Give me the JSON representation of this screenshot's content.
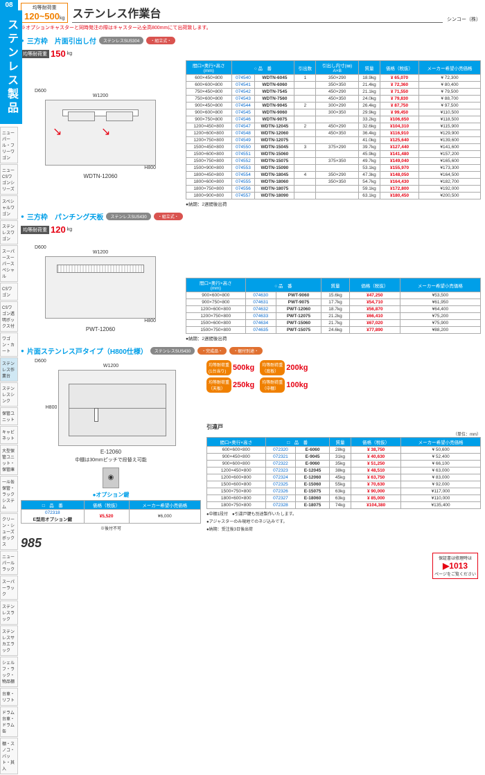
{
  "page": {
    "num": "985",
    "cat_num": "08",
    "cat_name": "ステンレス製品",
    "title": "ステンレス作業台",
    "maker": "シンコー（株）"
  },
  "load_box": {
    "label": "均等耐荷重",
    "value": "120~500",
    "unit": "kg"
  },
  "warn": "※オプションキャスターと同時発注の際はキャスター込全高800mmにて出荷致します。",
  "sidenav": [
    "ニューパール・フリーワゴン",
    "ニューCSワゴンシリーズ",
    "スペシャルワゴン",
    "ステンレスワゴン",
    "スーパースーパースペシャル",
    "CSワゴン",
    "CSワゴン透明ボックス付",
    "ワゴン・カート",
    "ステンレス作業台",
    "ステンレスシンク",
    "保管ユニット",
    "キャビネット",
    "大型保管ユニット・保管庫",
    "一斗缶保管・ラックシステム",
    "クリーン・シューズボックス",
    "ニューパールラック",
    "スーパーラック",
    "ステンレスラック",
    "ステンレスサカエラック",
    "シェルフ・ラック・物品棚",
    "台車・リフト",
    "ドラム台車・ドラム缶",
    "棚・スノコ・バット・其入"
  ],
  "active_nav": 8,
  "sec1": {
    "name": "三方枠　片面引出し付",
    "mat": "ステンレスSUS304",
    "type": "・組立式・",
    "load": "150",
    "caption": "WDTN-12060",
    "dim_top": "W1200",
    "dim_d": "D600",
    "dim_h": "H800",
    "cols": [
      "間口×奥行×高さ\n(mm)",
      "○ 品　番",
      "引出数",
      "引出し内寸(㎜)\nA×B",
      "質量",
      "価格（税抜）",
      "メーカー希望小売価格"
    ],
    "rows": [
      [
        "600×450×800",
        "074540",
        "WDTN-6045",
        "1",
        "350×290",
        "18.9kg",
        "¥ 65,070",
        "¥ 72,300"
      ],
      [
        "600×600×800",
        "074541",
        "WDTN-6060",
        "",
        "350×350",
        "21.4kg",
        "¥ 72,360",
        "¥ 80,400"
      ],
      [
        "750×450×800",
        "074542",
        "WDTN-7545",
        "",
        "450×290",
        "21.1kg",
        "¥ 71,550",
        "¥ 79,500"
      ],
      [
        "750×600×800",
        "074543",
        "WDTN-7560",
        "",
        "450×350",
        "24.0kg",
        "¥ 79,830",
        "¥ 88,700"
      ],
      [
        "900×450×800",
        "074544",
        "WDTN-9045",
        "2",
        "300×290",
        "26.4kg",
        "¥ 87,750",
        "¥ 97,500"
      ],
      [
        "900×600×800",
        "074545",
        "WDTN-9060",
        "",
        "300×350",
        "29.9kg",
        "¥ 99,450",
        "¥110,500"
      ],
      [
        "900×750×800",
        "074546",
        "WDTN-9075",
        "",
        "",
        "33.2kg",
        "¥106,650",
        "¥118,500"
      ],
      [
        "1200×450×800",
        "074547",
        "WDTN-12045",
        "2",
        "450×290",
        "32.6kg",
        "¥104,310",
        "¥115,900"
      ],
      [
        "1200×600×800",
        "074548",
        "WDTN-12060",
        "",
        "450×350",
        "36.4kg",
        "¥116,910",
        "¥129,900"
      ],
      [
        "1200×750×800",
        "074549",
        "WDTN-12075",
        "",
        "",
        "41.0kg",
        "¥125,640",
        "¥139,600"
      ],
      [
        "1500×450×800",
        "074550",
        "WDTN-15045",
        "3",
        "375×290",
        "39.7kg",
        "¥127,440",
        "¥141,600"
      ],
      [
        "1500×600×800",
        "074551",
        "WDTN-15060",
        "",
        "",
        "45.9kg",
        "¥141,480",
        "¥157,200"
      ],
      [
        "1500×750×800",
        "074552",
        "WDTN-15075",
        "",
        "375×350",
        "49.7kg",
        "¥149,040",
        "¥165,600"
      ],
      [
        "1500×900×800",
        "074553",
        "WDTN-15090",
        "",
        "",
        "53.1kg",
        "¥155,970",
        "¥173,300"
      ],
      [
        "1800×450×800",
        "074554",
        "WDTN-18045",
        "4",
        "350×290",
        "47.3kg",
        "¥148,050",
        "¥164,500"
      ],
      [
        "1800×600×800",
        "074555",
        "WDTN-18060",
        "",
        "350×350",
        "54.7kg",
        "¥164,430",
        "¥182,700"
      ],
      [
        "1800×750×800",
        "074556",
        "WDTN-18075",
        "",
        "",
        "59.1kg",
        "¥172,800",
        "¥192,000"
      ],
      [
        "1800×900×800",
        "074557",
        "WDTN-18090",
        "",
        "",
        "63.1kg",
        "¥180,450",
        "¥200,500"
      ]
    ],
    "nouki": "●納期：2週間後出荷"
  },
  "sec2": {
    "name": "三方枠　パンチング天板",
    "mat": "ステンレスSUS430",
    "type": "・組立式・",
    "load": "120",
    "caption": "PWT-12060",
    "dim_top": "W1200",
    "dim_d": "D600",
    "dim_h": "H800",
    "cols": [
      "間口×奥行×高さ\n(mm)",
      "○ 品　番",
      "質量",
      "価格（税抜）",
      "メーカー希望小売価格"
    ],
    "rows": [
      [
        "900×600×800",
        "074630",
        "PWT-9060",
        "15.6kg",
        "¥47,250",
        "¥53,500"
      ],
      [
        "900×750×800",
        "074631",
        "PWT-9075",
        "17.7kg",
        "¥54,710",
        "¥61,950"
      ],
      [
        "1200×600×800",
        "074632",
        "PWT-12060",
        "18.7kg",
        "¥56,870",
        "¥64,400"
      ],
      [
        "1200×750×800",
        "074633",
        "PWT-12075",
        "21.2kg",
        "¥66,410",
        "¥75,200"
      ],
      [
        "1500×600×800",
        "074634",
        "PWT-15060",
        "21.7kg",
        "¥67,020",
        "¥75,900"
      ],
      [
        "1500×750×800",
        "074635",
        "PWT-15075",
        "24.6kg",
        "¥77,890",
        "¥88,200"
      ]
    ],
    "nouki": "●納期：2週間後出荷"
  },
  "sec3": {
    "name": "片面ステンレス戸タイプ（H800仕様）",
    "mat": "ステンレスSUS430",
    "type": "・完成品・",
    "sep": "・据付別途・",
    "caption": "E-12060",
    "dim_top": "W1200",
    "dim_d": "D600",
    "dim_h": "H800",
    "sub": "中棚は30mmピッチで段替え可能",
    "loads": [
      [
        "均等耐荷重\n(1台当り)",
        "500kg"
      ],
      [
        "均等耐荷重\n（底板）",
        "200kg"
      ],
      [
        "均等耐荷重\n（天板）",
        "250kg"
      ],
      [
        "均等耐荷重\n（中棚）",
        "100kg"
      ]
    ],
    "subtitle": "引違戸",
    "unit": "（単位：mm）",
    "cols": [
      "間口×奥行×高さ",
      "□　品　番",
      "質量",
      "価格（税抜）",
      "メーカー希望小売価格"
    ],
    "rows": [
      [
        "600×600×800",
        "072320",
        "E-6060",
        "28kg",
        "¥ 38,750",
        "¥ 50,600"
      ],
      [
        "900×450×800",
        "072321",
        "E-9045",
        "31kg",
        "¥ 40,630",
        "¥ 52,400"
      ],
      [
        "900×600×800",
        "072322",
        "E-9060",
        "35kg",
        "¥ 51,250",
        "¥ 66,100"
      ],
      [
        "1200×450×800",
        "072323",
        "E-12045",
        "38kg",
        "¥ 48,510",
        "¥ 63,000"
      ],
      [
        "1200×600×800",
        "072324",
        "E-12060",
        "45kg",
        "¥ 63,750",
        "¥ 83,000"
      ],
      [
        "1500×600×800",
        "072325",
        "E-15060",
        "55kg",
        "¥ 70,630",
        "¥ 92,000"
      ],
      [
        "1500×750×800",
        "072326",
        "E-15075",
        "63kg",
        "¥ 90,000",
        "¥117,000"
      ],
      [
        "1800×600×800",
        "072327",
        "E-18060",
        "63kg",
        "¥ 85,000",
        "¥110,000"
      ],
      [
        "1800×750×800",
        "072328",
        "E-18075",
        "74kg",
        "¥104,380",
        "¥135,400"
      ]
    ],
    "notes": [
      "●中棚1段付　●引違戸鍵も別途製作いたします。",
      "●アジャスターのみ現地でのネジ込みです。",
      "●納期：受注後3日後出荷"
    ]
  },
  "opt": {
    "hdr": "●オプション鍵",
    "cols": [
      "□　品　番",
      "価格（税抜）",
      "メーカー希望小売価格"
    ],
    "code": "072318",
    "name": "E型用オプション鍵",
    "price": "¥5,520",
    "list": "¥6,000",
    "note": "※後付不可"
  },
  "hoshou": {
    "label": "保証書は修理時は",
    "num": "▶1013",
    "sub": "ページをご覧ください"
  }
}
